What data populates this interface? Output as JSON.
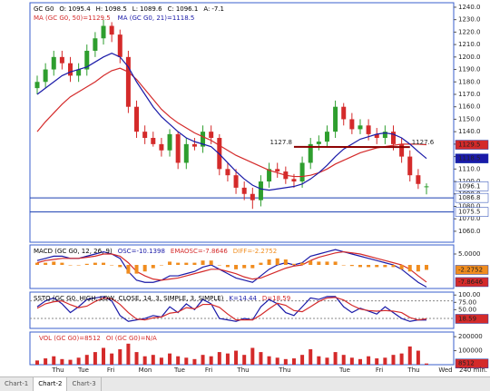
{
  "chart_data": [
    {
      "type": "candlestick",
      "symbol": "GC G0",
      "header_labels": [
        "O:",
        "H:",
        "L:",
        "C:",
        "A:"
      ],
      "change": -7.1,
      "separator": "=",
      "open": [
        1175,
        1180,
        1190,
        1200,
        1195,
        1185,
        1190,
        1205,
        1215,
        1225,
        1218,
        1200,
        1160,
        1140,
        1135,
        1130,
        1125,
        1138,
        1115,
        1130,
        1128,
        1140,
        1135,
        1110,
        1105,
        1095,
        1090,
        1085,
        1100,
        1110,
        1108,
        1102,
        1100,
        1115,
        1130,
        1132,
        1140,
        1160,
        1150,
        1142,
        1145,
        1138,
        1135,
        1140,
        1130,
        1120,
        1105,
        1095.4
      ],
      "high": [
        1185,
        1195,
        1205,
        1205,
        1200,
        1195,
        1210,
        1220,
        1230,
        1228,
        1222,
        1205,
        1165,
        1145,
        1140,
        1135,
        1142,
        1140,
        1135,
        1135,
        1145,
        1145,
        1138,
        1115,
        1110,
        1100,
        1095,
        1105,
        1115,
        1115,
        1112,
        1106,
        1120,
        1135,
        1137,
        1145,
        1165,
        1163,
        1155,
        1150,
        1150,
        1143,
        1145,
        1145,
        1135,
        1125,
        1110,
        1098.5
      ],
      "low": [
        1170,
        1175,
        1185,
        1190,
        1180,
        1180,
        1185,
        1200,
        1210,
        1212,
        1195,
        1155,
        1135,
        1130,
        1128,
        1120,
        1120,
        1110,
        1110,
        1125,
        1123,
        1130,
        1105,
        1100,
        1090,
        1085,
        1078,
        1080,
        1095,
        1103,
        1098,
        1095,
        1095,
        1110,
        1125,
        1128,
        1135,
        1145,
        1138,
        1138,
        1133,
        1130,
        1130,
        1125,
        1115,
        1100,
        1094,
        1089.6
      ],
      "close": [
        1180,
        1190,
        1200,
        1195,
        1185,
        1190,
        1205,
        1215,
        1225,
        1218,
        1200,
        1160,
        1140,
        1135,
        1130,
        1125,
        1138,
        1115,
        1130,
        1128,
        1140,
        1135,
        1110,
        1105,
        1095,
        1090,
        1085,
        1100,
        1110,
        1108,
        1102,
        1100,
        1115,
        1130,
        1132,
        1140,
        1160,
        1150,
        1142,
        1145,
        1138,
        1135,
        1140,
        1130,
        1120,
        1105,
        1098,
        1096.1
      ],
      "up_color": "#2e9e2e",
      "down_color": "#d42a2a",
      "series": [
        {
          "name": "MA (GC G0, 50)",
          "color": "#d42a2a",
          "values": [
            1140,
            1148,
            1155,
            1162,
            1168,
            1172,
            1176,
            1180,
            1185,
            1189,
            1191,
            1188,
            1182,
            1174,
            1166,
            1158,
            1152,
            1147,
            1143,
            1139,
            1136,
            1133,
            1129,
            1125,
            1121,
            1118,
            1115,
            1112,
            1109,
            1107,
            1105,
            1104,
            1104,
            1105,
            1107,
            1110,
            1114,
            1117,
            1120,
            1123,
            1125,
            1127,
            1128,
            1129,
            1130,
            1130,
            1130,
            1129.5
          ]
        },
        {
          "name": "MA (GC G0, 21)",
          "color": "#1a1aa8",
          "values": [
            1170,
            1175,
            1180,
            1185,
            1188,
            1190,
            1192,
            1196,
            1200,
            1203,
            1200,
            1192,
            1180,
            1170,
            1160,
            1152,
            1146,
            1140,
            1135,
            1132,
            1130,
            1128,
            1122,
            1115,
            1108,
            1102,
            1097,
            1094,
            1093,
            1094,
            1095,
            1096,
            1098,
            1102,
            1107,
            1113,
            1120,
            1126,
            1130,
            1134,
            1136,
            1138,
            1139,
            1138,
            1135,
            1130,
            1124,
            1118.5
          ]
        }
      ],
      "trendline": {
        "start": 1127.8,
        "end": 1127.6,
        "color": "#8b0000"
      },
      "levels": [
        1086.8,
        1075.5
      ],
      "level_color": "#1a3fb0",
      "ylim": [
        1051.2,
        1243.6
      ],
      "yticks": [
        {
          "value": 1240,
          "label": "1240.0"
        },
        {
          "value": 1230,
          "label": "1230.0"
        },
        {
          "value": 1220,
          "label": "1220.0"
        },
        {
          "value": 1210,
          "label": "1210.0"
        },
        {
          "value": 1200,
          "label": "1200.0"
        },
        {
          "value": 1190,
          "label": "1190.0"
        },
        {
          "value": 1180,
          "label": "1180.0"
        },
        {
          "value": 1170,
          "label": "1170.0"
        },
        {
          "value": 1160,
          "label": "1160.0"
        },
        {
          "value": 1150,
          "label": "1150.0"
        },
        {
          "value": 1140,
          "label": "1140.0"
        },
        {
          "value": 1130,
          "label": "1130.0"
        },
        {
          "value": 1120,
          "label": "1120.0"
        },
        {
          "value": 1110,
          "label": "1110.0"
        },
        {
          "value": 1100,
          "label": "1100.0"
        },
        {
          "value": 1090,
          "label": "1090.0"
        },
        {
          "value": 1080,
          "label": "1080.0"
        },
        {
          "value": 1070,
          "label": "1070.0"
        },
        {
          "value": 1060,
          "label": "1060.0"
        }
      ]
    },
    {
      "type": "macd",
      "name": "MACD (GC G0, 12, 26, 9)",
      "separator": "=",
      "series": [
        {
          "name": "OSC",
          "color": "#1a1aa8",
          "kind": "line",
          "badge": false,
          "values": [
            2,
            3,
            4,
            4,
            3,
            3,
            4,
            5,
            6,
            5,
            3,
            -3,
            -7,
            -8,
            -8,
            -7,
            -5,
            -5,
            -4,
            -3,
            -1,
            0,
            -2,
            -4,
            -6,
            -7,
            -8,
            -5,
            -2,
            0,
            1,
            0,
            1,
            4,
            5,
            6,
            7,
            6,
            5,
            4,
            3,
            2,
            1,
            0,
            -2,
            -5,
            -8,
            -10.1398
          ]
        },
        {
          "name": "EMAOSC",
          "color": "#d42a2a",
          "kind": "line",
          "badge": true,
          "values": [
            1,
            2,
            2.5,
            3,
            3,
            3,
            3.5,
            4,
            5,
            5,
            4,
            1,
            -3,
            -5,
            -6.5,
            -7,
            -6.5,
            -6,
            -5,
            -4,
            -3,
            -2,
            -2,
            -3,
            -4,
            -5.5,
            -6.5,
            -6,
            -4.5,
            -3,
            -1.5,
            -0.5,
            0,
            2,
            3.5,
            4.5,
            5.5,
            6,
            5.5,
            5,
            4,
            3,
            2,
            1,
            0,
            -2,
            -5,
            -7.8646
          ]
        },
        {
          "name": "DIFF",
          "color": "#f08c1e",
          "kind": "bar",
          "badge": true,
          "values": [
            1,
            1,
            1.5,
            1,
            0,
            0,
            0.5,
            1,
            1,
            0,
            -1,
            -4,
            -4,
            -3,
            -1.5,
            0,
            1.5,
            1,
            1,
            1,
            2,
            2,
            0,
            -1,
            -2,
            -1.5,
            -1.5,
            1,
            2.5,
            3,
            2.5,
            0.5,
            1,
            2,
            1.5,
            1.5,
            1.5,
            0,
            -0.5,
            -1,
            -1,
            -1,
            -1,
            -1,
            -2,
            -3,
            -3,
            -2.2752
          ]
        }
      ],
      "ylim": [
        -10.8,
        9.15
      ],
      "yticks": [
        {
          "value": 5,
          "label": "5.0000"
        }
      ]
    },
    {
      "type": "stochastic",
      "name": "SSTO (GC G0, HIGH, LOW, CLOSE, 14, 3, SIMPLE, 3, SIMPLE)",
      "separator": "=",
      "series": [
        {
          "name": "K",
          "color": "#1a1aa8",
          "badge": false,
          "values": [
            60,
            80,
            90,
            70,
            40,
            60,
            85,
            90,
            95,
            80,
            30,
            10,
            15,
            20,
            30,
            25,
            60,
            40,
            70,
            50,
            85,
            70,
            20,
            15,
            10,
            20,
            15,
            60,
            85,
            70,
            40,
            30,
            60,
            90,
            85,
            95,
            95,
            60,
            40,
            55,
            45,
            35,
            60,
            40,
            20,
            10,
            15,
            14.44
          ]
        },
        {
          "name": "D",
          "color": "#d42a2a",
          "badge": true,
          "values": [
            55,
            70,
            77,
            80,
            67,
            57,
            62,
            78,
            90,
            88,
            68,
            40,
            18,
            15,
            22,
            25,
            38,
            42,
            57,
            53,
            68,
            68,
            58,
            35,
            15,
            15,
            15,
            32,
            53,
            72,
            65,
            47,
            43,
            60,
            78,
            90,
            92,
            83,
            65,
            52,
            47,
            45,
            47,
            45,
            40,
            23,
            15,
            18.59
          ]
        }
      ],
      "bands": [
        20,
        80
      ],
      "ylim": [
        -14,
        110
      ],
      "yticks": [
        {
          "value": 100,
          "label": "100.00"
        },
        {
          "value": 75,
          "label": "75.00"
        },
        {
          "value": 50,
          "label": "50.00"
        }
      ]
    },
    {
      "type": "volume",
      "separator": "=",
      "series": [
        {
          "name": "VOL (GC G0)",
          "color": "#d42a2a",
          "badge": true,
          "values": [
            30000,
            45000,
            60000,
            40000,
            35000,
            50000,
            70000,
            90000,
            120000,
            80000,
            110000,
            150000,
            90000,
            60000,
            70000,
            50000,
            80000,
            60000,
            50000,
            40000,
            70000,
            60000,
            90000,
            80000,
            100000,
            70000,
            120000,
            90000,
            60000,
            50000,
            40000,
            45000,
            70000,
            110000,
            60000,
            50000,
            90000,
            70000,
            50000,
            40000,
            60000,
            45000,
            50000,
            70000,
            80000,
            130000,
            100000,
            8512
          ]
        }
      ],
      "open_interest": {
        "name": "OI (GC G0)",
        "value": "N/A"
      },
      "ylim": [
        0,
        233000
      ],
      "yticks": [
        200000,
        100000
      ]
    }
  ],
  "x_axis": {
    "labels": [
      "Thu",
      "Tue",
      "Fri",
      "Mon",
      "Tue",
      "Fri",
      "Thu",
      "Thu",
      "Tue",
      "Fri",
      "Thu",
      "Wed"
    ],
    "timeframe": "240 min."
  },
  "tabs": {
    "items": [
      "Chart-1",
      "Chart-2",
      "Chart-3"
    ],
    "active": 1
  }
}
